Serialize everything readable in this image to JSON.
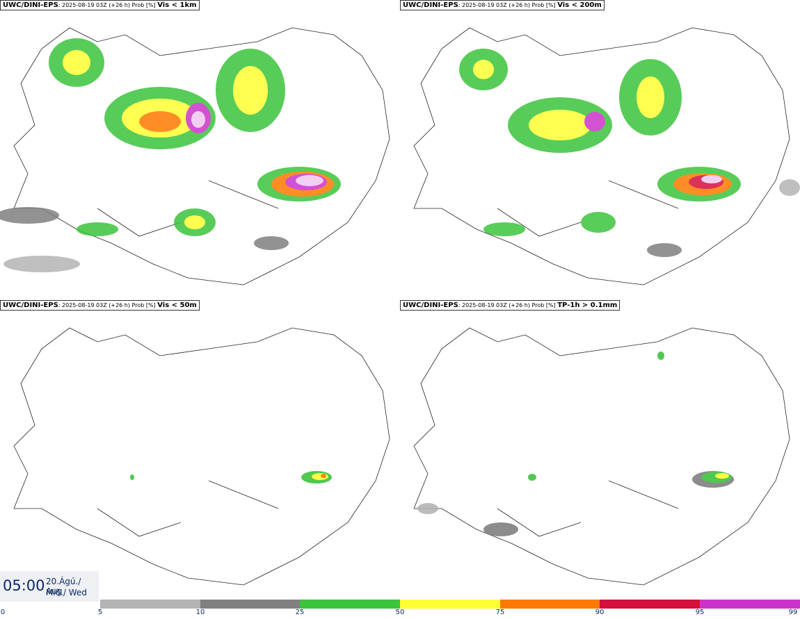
{
  "panels": [
    {
      "model": "UWC/DINI-EPS",
      "meta": ": 2025-08-19 03Z (+26 h) Prob [%] ",
      "variable": "Vis < 1km"
    },
    {
      "model": "UWC/DINI-EPS",
      "meta": ": 2025-08-19 03Z (+26 h) Prob [%] ",
      "variable": "Vis < 200m"
    },
    {
      "model": "UWC/DINI-EPS",
      "meta": ": 2025-08-19 03Z (+26 h) Prob [%] ",
      "variable": "Vis < 50m"
    },
    {
      "model": "UWC/DINI-EPS",
      "meta": ": 2025-08-19 03Z (+26 h) Prob [%] ",
      "variable": "TP-1h > 0.1mm"
    }
  ],
  "valid_time": {
    "time": "05:00",
    "date_line1": "20.Ágú./ Aug",
    "date_line2": "Mið./ Wed"
  },
  "colorbar": {
    "ticks": [
      "0",
      "5",
      "10",
      "25",
      "50",
      "75",
      "90",
      "95",
      "99"
    ],
    "colors": [
      "#b4b4b4",
      "#808080",
      "#3cc43c",
      "#ffff33",
      "#ff7a00",
      "#d40f3c",
      "#cc33cc",
      "#f2c6f2"
    ]
  }
}
